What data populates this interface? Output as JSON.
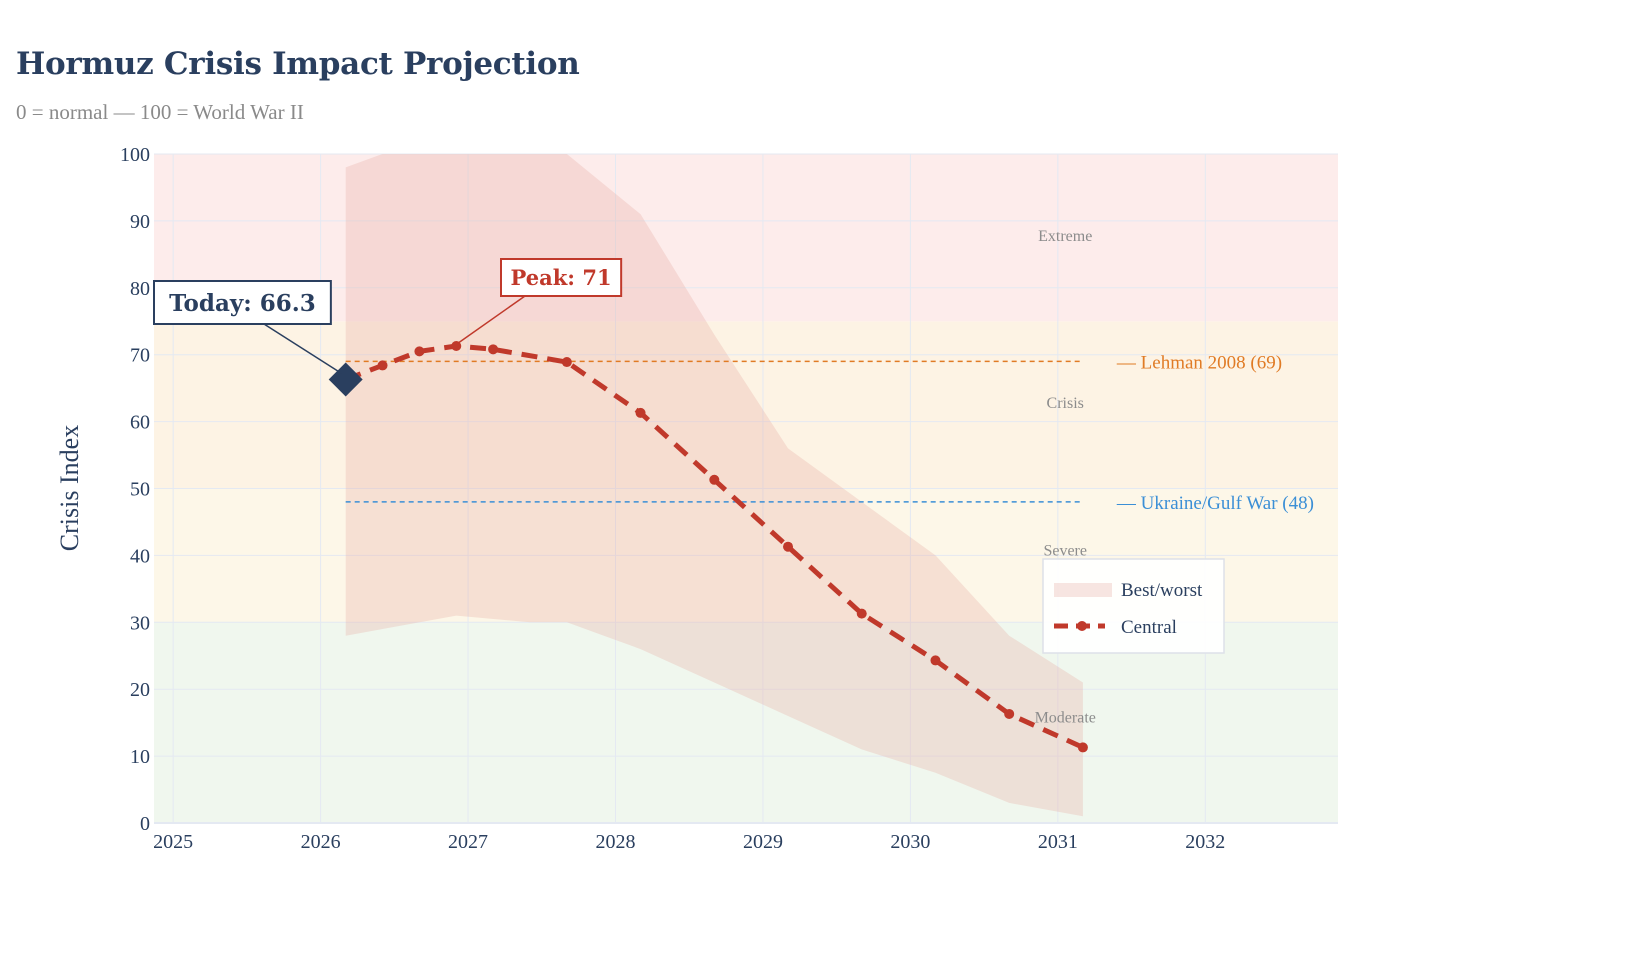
{
  "title": "Hormuz Crisis Impact Projection",
  "subtitle": "0 = normal — 100 = World War II",
  "chart_data": {
    "type": "line",
    "ylabel": "Crisis Index",
    "xlabel": "",
    "xlim": [
      2024.87,
      2032.9
    ],
    "ylim": [
      0,
      100
    ],
    "x_ticks": [
      2025,
      2026,
      2027,
      2028,
      2029,
      2030,
      2031,
      2032
    ],
    "y_ticks": [
      0,
      10,
      20,
      30,
      40,
      50,
      60,
      70,
      80,
      90,
      100
    ],
    "grid": true,
    "zones": [
      {
        "name": "Moderate",
        "from": 0,
        "to": 30,
        "color": "#f0f7ee",
        "label_y": 15
      },
      {
        "name": "Severe",
        "from": 30,
        "to": 50,
        "color": "#fdf7e8",
        "label_y": 40
      },
      {
        "name": "Crisis",
        "from": 50,
        "to": 75,
        "color": "#fdf3e4",
        "label_y": 62
      },
      {
        "name": "Extreme",
        "from": 75,
        "to": 100,
        "color": "#fdeceb",
        "label_y": 87
      }
    ],
    "zone_label_x": 2031.05,
    "reference_lines": [
      {
        "label": "— Lehman 2008 (69)",
        "y": 69,
        "x_start": 2026.17,
        "x_end": 2031.17,
        "color": "#e07b25"
      },
      {
        "label": "— Ukraine/Gulf War (48)",
        "y": 48,
        "x_start": 2026.17,
        "x_end": 2031.17,
        "color": "#3b8fd6"
      }
    ],
    "band": {
      "name": "Best/worst",
      "color": "#e8b4ac",
      "x": [
        2026.17,
        2026.42,
        2026.92,
        2027.42,
        2027.67,
        2028.17,
        2028.67,
        2029.17,
        2029.67,
        2030.17,
        2030.67,
        2031.17
      ],
      "upper": [
        98,
        100,
        100,
        100,
        100,
        91,
        73,
        56,
        48,
        40,
        28,
        21
      ],
      "lower": [
        28,
        29,
        31,
        30,
        30,
        26,
        21,
        16,
        11,
        7.5,
        3,
        1
      ]
    },
    "series": [
      {
        "name": "Central",
        "color": "#c0392b",
        "x": [
          2026.17,
          2026.42,
          2026.67,
          2026.92,
          2027.17,
          2027.67,
          2028.17,
          2028.67,
          2029.17,
          2029.67,
          2030.17,
          2030.67,
          2031.17
        ],
        "values": [
          66.3,
          68.4,
          70.5,
          71.3,
          70.8,
          68.9,
          61.3,
          51.3,
          41.3,
          31.3,
          24.3,
          16.3,
          11.3
        ]
      }
    ],
    "annotations": [
      {
        "text": "Today: 66.3",
        "x": 2026.17,
        "y": 66.3,
        "color": "#2a3f5f"
      },
      {
        "text": "Peak: 71",
        "x": 2026.92,
        "y": 71.3,
        "color": "#c0392b"
      }
    ],
    "today_marker_color": "#2a3f5f",
    "legend_position": "bottom-right"
  }
}
